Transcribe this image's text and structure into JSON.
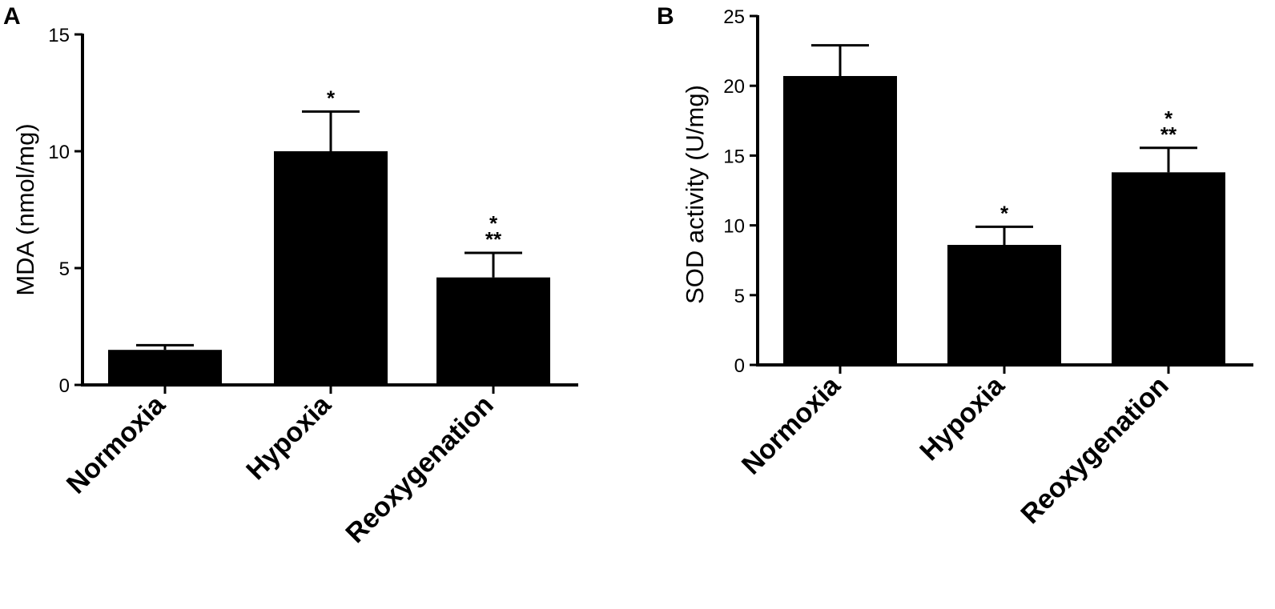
{
  "chart_data": [
    {
      "type": "bar",
      "panel": "A",
      "categories": [
        "Normoxia",
        "Hypoxia",
        "Reoxygenation"
      ],
      "values": [
        1.5,
        10.0,
        4.6
      ],
      "errors": [
        0.2,
        1.7,
        1.05
      ],
      "significance": [
        "",
        "*",
        "*\n**"
      ],
      "ylabel": "MDA (nmol/mg)",
      "xlabel": "",
      "ylim": [
        0,
        15
      ],
      "yticks": [
        "0",
        "5",
        "10",
        "15"
      ],
      "grid": false,
      "bar_color": "#000000"
    },
    {
      "type": "bar",
      "panel": "B",
      "categories": [
        "Normoxia",
        "Hypoxia",
        "Reoxygenation"
      ],
      "values": [
        20.7,
        8.6,
        13.8
      ],
      "errors": [
        2.2,
        1.3,
        1.75
      ],
      "significance": [
        "",
        "*",
        "*\n**"
      ],
      "ylabel": "SOD activity (U/mg)",
      "xlabel": "",
      "ylim": [
        0,
        25
      ],
      "yticks": [
        "0",
        "5",
        "10",
        "15",
        "20",
        "25"
      ],
      "grid": false,
      "bar_color": "#000000"
    }
  ]
}
